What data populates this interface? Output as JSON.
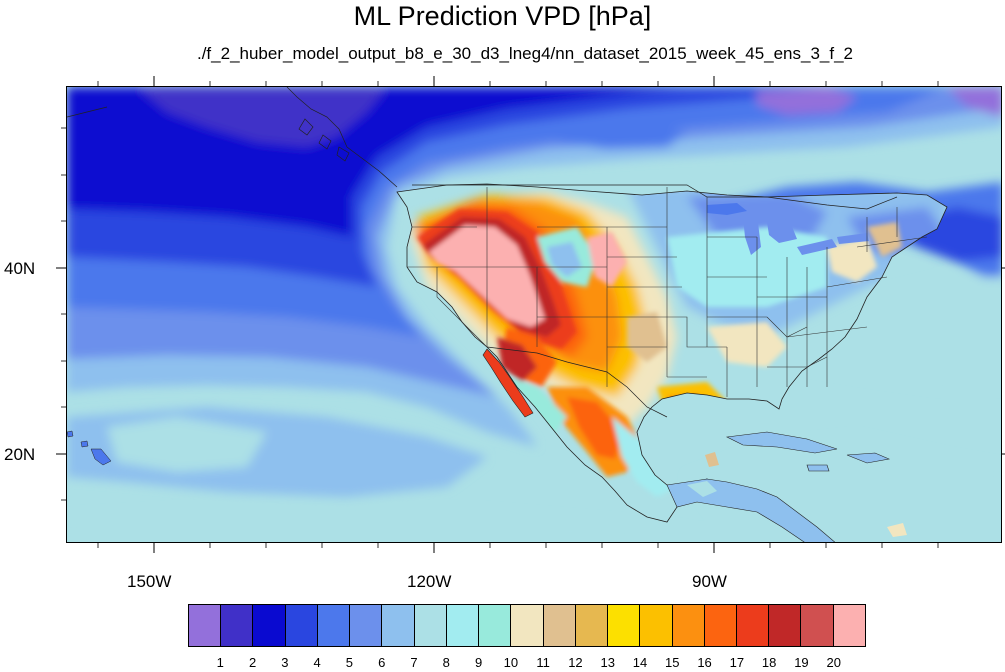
{
  "title": "ML Prediction VPD [hPa]",
  "subtitle": "./f_2_huber_model_output_b8_e_30_d3_lneg4/nn_dataset_2015_week_45_ens_3_f_2",
  "axes": {
    "lon_labels": [
      "150W",
      "120W",
      "90W"
    ],
    "lat_labels": [
      "40N",
      "20N"
    ]
  },
  "colorbar": {
    "colors": [
      "#9370db",
      "#4030c8",
      "#0a0ad0",
      "#2a46e0",
      "#4c78ec",
      "#6c90ec",
      "#8ec0ee",
      "#ace0e6",
      "#a2ecf0",
      "#98eadc",
      "#f2e6c0",
      "#e0c090",
      "#e6b850",
      "#fce000",
      "#fcc000",
      "#fc9010",
      "#fc6410",
      "#ec3c1c",
      "#c02828",
      "#d05050",
      "#fcb0b0"
    ],
    "labels": [
      "1",
      "2",
      "3",
      "4",
      "5",
      "6",
      "7",
      "8",
      "9",
      "10",
      "11",
      "12",
      "13",
      "14",
      "15",
      "16",
      "17",
      "18",
      "19",
      "20"
    ]
  },
  "map_data": {
    "variable": "VPD",
    "unit": "hPa",
    "lon_range": [
      -159.5,
      -59.5
    ],
    "lat_range": [
      10,
      59
    ],
    "projection": "cylindrical-equidistant"
  }
}
